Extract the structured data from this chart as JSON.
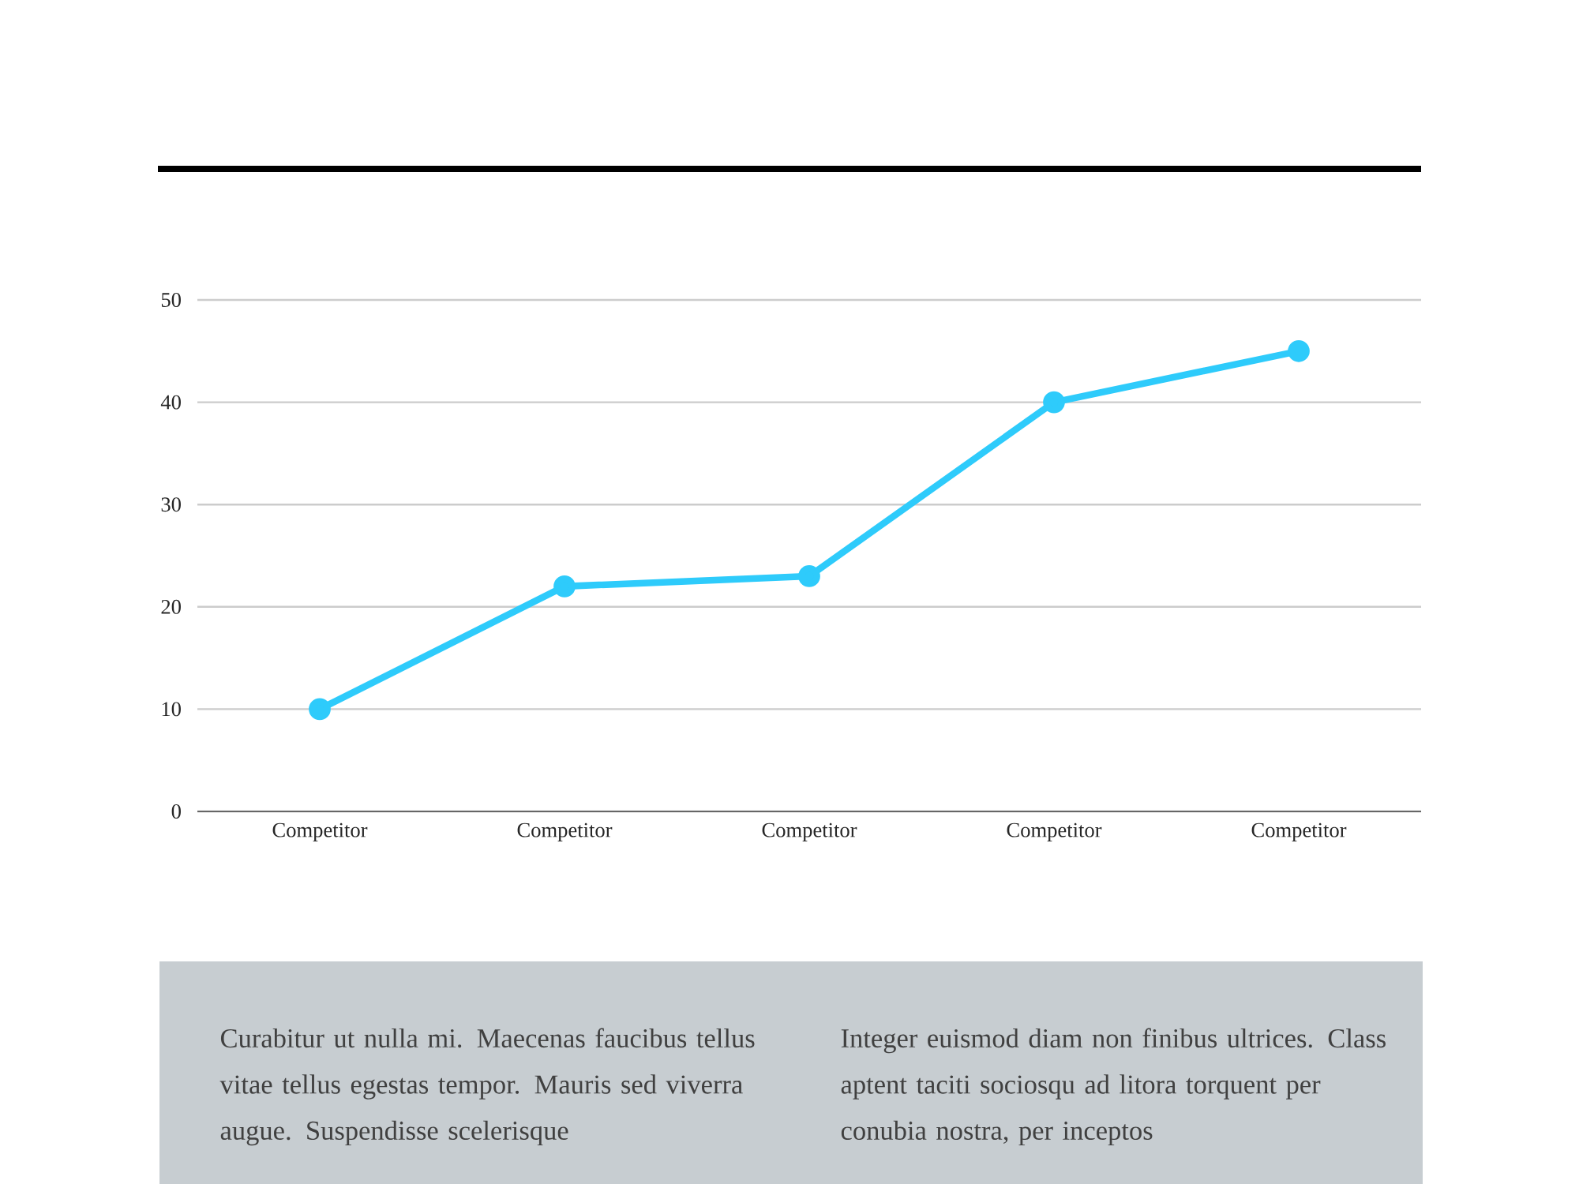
{
  "chart_data": {
    "type": "line",
    "categories": [
      "Competitor",
      "Competitor",
      "Competitor",
      "Competitor",
      "Competitor"
    ],
    "series": [
      {
        "color": "#2ecbfb",
        "values": [
          10,
          22,
          23,
          40,
          45
        ]
      }
    ],
    "ylim": [
      0,
      50
    ],
    "yticks": [
      0,
      10,
      20,
      30,
      40,
      50
    ],
    "grid": "y",
    "marker": "circle",
    "line_style": "solid",
    "annotations": [
      "Curabitur ut nulla mi. Maecenas faucibus tellus vitae tellus egestas tempor. Mauris sed viverra augue. Suspendisse scelerisque",
      "Integer euismod diam non finibus ultrices. Class aptent taciti sociosqu ad litora torquent per conubia nostra, per inceptos"
    ]
  }
}
